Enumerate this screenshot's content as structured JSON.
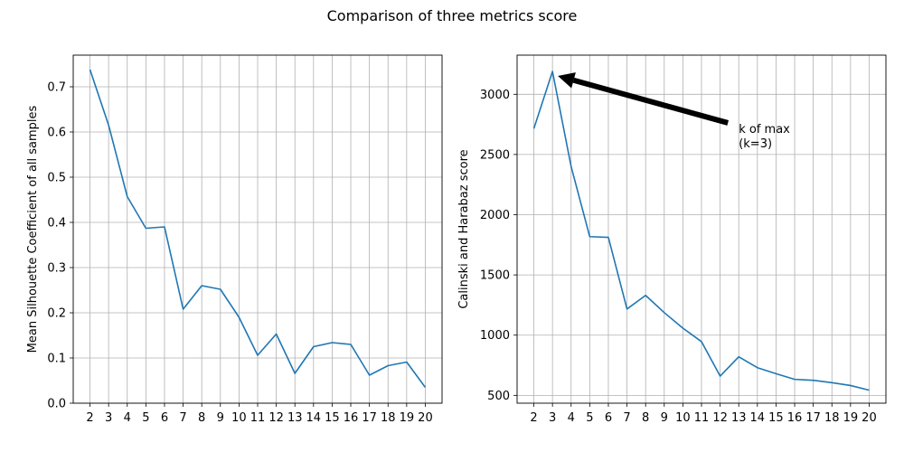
{
  "suptitle": "Comparison of three metrics score",
  "chart_data": [
    {
      "type": "line",
      "title": "",
      "xlabel": "",
      "ylabel": "Mean Silhouette Coefficient of all samples",
      "grid": true,
      "color": "#1f77b4",
      "x": [
        2,
        3,
        4,
        5,
        6,
        7,
        8,
        9,
        10,
        11,
        12,
        13,
        14,
        15,
        16,
        17,
        18,
        19,
        20
      ],
      "y": [
        0.738,
        0.615,
        0.457,
        0.387,
        0.39,
        0.208,
        0.26,
        0.252,
        0.19,
        0.106,
        0.153,
        0.066,
        0.125,
        0.134,
        0.13,
        0.062,
        0.083,
        0.091,
        0.035
      ],
      "xlim": [
        1.1,
        20.9
      ],
      "ylim": [
        0,
        0.77
      ],
      "yticks": [
        0.0,
        0.1,
        0.2,
        0.3,
        0.4,
        0.5,
        0.6,
        0.7
      ],
      "ytick_labels": [
        "0.0",
        "0.1",
        "0.2",
        "0.3",
        "0.4",
        "0.5",
        "0.6",
        "0.7"
      ]
    },
    {
      "type": "line",
      "title": "",
      "xlabel": "",
      "ylabel": "Calinski and Harabaz score",
      "grid": true,
      "color": "#1f77b4",
      "x": [
        2,
        3,
        4,
        5,
        6,
        7,
        8,
        9,
        10,
        11,
        12,
        13,
        14,
        15,
        16,
        17,
        18,
        19,
        20
      ],
      "y": [
        2715,
        3190,
        2400,
        1818,
        1812,
        1217,
        1330,
        1187,
        1058,
        946,
        660,
        820,
        730,
        680,
        633,
        625,
        605,
        582,
        543
      ],
      "xlim": [
        1.1,
        20.9
      ],
      "ylim": [
        435,
        3325
      ],
      "yticks": [
        500,
        1000,
        1500,
        2000,
        2500,
        3000
      ],
      "ytick_labels": [
        "500",
        "1000",
        "1500",
        "2000",
        "2500",
        "3000"
      ],
      "annotation": {
        "text_lines": [
          "k of max",
          "(k=3)"
        ],
        "point": [
          3,
          3190
        ],
        "text_at": [
          13,
          2650
        ]
      }
    }
  ]
}
